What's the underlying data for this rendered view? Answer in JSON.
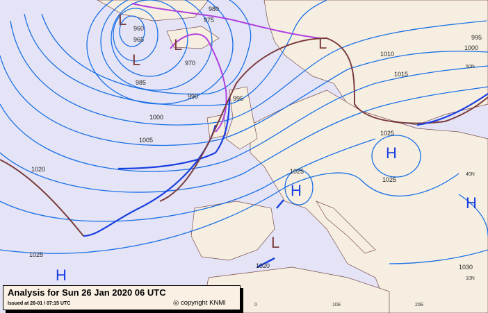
{
  "caption": {
    "title": "Analysis for Sun 26 Jan 2020 06 UTC",
    "issued": "Issued at 26-01 / 07:15 UTC",
    "copyright": "copyright KNMI"
  },
  "isobar_labels": [
    "960",
    "965",
    "970",
    "975",
    "980",
    "985",
    "990",
    "995",
    "1000",
    "1005",
    "1010",
    "1015",
    "1020",
    "1025",
    "1025",
    "1025",
    "1020",
    "1025",
    "1030",
    "995",
    "1000"
  ],
  "grid_labels": [
    "50N",
    "40N",
    "10N",
    "10E",
    "20E",
    "0"
  ],
  "pressure_centers": [
    {
      "type": "L"
    },
    {
      "type": "L"
    },
    {
      "type": "L"
    },
    {
      "type": "L"
    },
    {
      "type": "H"
    },
    {
      "type": "H"
    },
    {
      "type": "H"
    },
    {
      "type": "L"
    },
    {
      "type": "H"
    }
  ],
  "colors": {
    "ocean": "#e4e4f6",
    "land": "#f6efe1",
    "isobar": "#1a6fe6",
    "cold_front": "#1a3fe0",
    "warm_front": "#7a3b3b",
    "occlusion": "#b040e0"
  }
}
